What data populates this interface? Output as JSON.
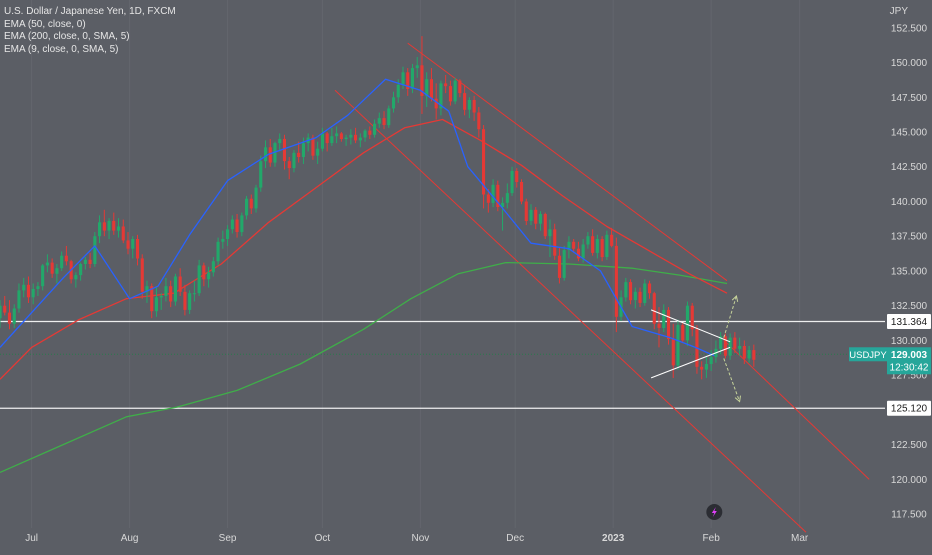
{
  "chart_data": {
    "type": "candlestick",
    "title": "U.S. Dollar / Japanese Yen, 1D, FXCM",
    "indicators": [
      "EMA (50, close, 0)",
      "EMA (200, close, 0, SMA, 5)",
      "EMA (9, close, 0, SMA, 5)"
    ],
    "y_unit": "JPY",
    "symbol": "USDJPY",
    "last_price": "129.003",
    "countdown": "12:30:42",
    "y_ticks": [
      "152.500",
      "150.000",
      "147.500",
      "145.000",
      "142.500",
      "140.000",
      "137.500",
      "135.000",
      "132.500",
      "130.000",
      "127.500",
      "125.000",
      "122.500",
      "120.000",
      "117.500"
    ],
    "x_labels": [
      "Jul",
      "Aug",
      "Sep",
      "Oct",
      "Nov",
      "Dec",
      "2023",
      "Feb",
      "Mar"
    ],
    "x_label_days": [
      10,
      41,
      72,
      102,
      133,
      163,
      194,
      225,
      253
    ],
    "ylim": [
      116.5,
      154.5
    ],
    "xlim": [
      0,
      280
    ],
    "horizontal_levels": [
      {
        "label": "131.364",
        "price": 131.364,
        "color": "#ffffff"
      },
      {
        "label": "125.120",
        "price": 125.12,
        "color": "#ffffff"
      }
    ],
    "current_price_line": {
      "price": 129.003,
      "color": "#2a7a4c"
    },
    "colors": {
      "up": "#22a86a",
      "down": "#e53935",
      "ema9": "#2962ff",
      "ema50": "#e53935",
      "ema200": "#3fae49",
      "channel": "#e53935",
      "triangle": "#ffffff",
      "arrow": "#c6d39a",
      "price_tag": "#26a69a"
    },
    "ohlc": [
      [
        131.6,
        132.9,
        130.9,
        132.5
      ],
      [
        132.5,
        133.2,
        131.8,
        132.0
      ],
      [
        132.0,
        132.9,
        130.8,
        131.2
      ],
      [
        131.2,
        132.6,
        130.9,
        132.3
      ],
      [
        132.3,
        134.1,
        132.0,
        133.6
      ],
      [
        133.6,
        134.5,
        133.1,
        134.0
      ],
      [
        134.0,
        134.6,
        132.7,
        133.1
      ],
      [
        133.1,
        134.1,
        132.6,
        133.7
      ],
      [
        133.7,
        134.2,
        133.2,
        133.9
      ],
      [
        133.9,
        135.5,
        133.6,
        135.4
      ],
      [
        135.4,
        136.2,
        134.9,
        135.6
      ],
      [
        135.6,
        135.9,
        134.5,
        134.8
      ],
      [
        134.8,
        135.5,
        134.1,
        135.2
      ],
      [
        135.2,
        136.4,
        135.0,
        136.1
      ],
      [
        136.1,
        136.8,
        135.4,
        135.7
      ],
      [
        135.7,
        135.8,
        134.1,
        134.4
      ],
      [
        134.4,
        134.9,
        133.8,
        134.7
      ],
      [
        134.7,
        135.6,
        134.3,
        135.5
      ],
      [
        135.5,
        136.0,
        135.1,
        135.8
      ],
      [
        135.8,
        136.3,
        135.2,
        135.5
      ],
      [
        135.5,
        137.8,
        135.3,
        137.5
      ],
      [
        137.5,
        139.0,
        137.0,
        138.5
      ],
      [
        138.5,
        139.4,
        137.5,
        137.9
      ],
      [
        137.9,
        138.8,
        137.3,
        138.6
      ],
      [
        138.6,
        139.2,
        137.6,
        137.9
      ],
      [
        137.9,
        138.8,
        137.4,
        138.2
      ],
      [
        138.2,
        138.7,
        137.0,
        137.2
      ],
      [
        137.2,
        137.8,
        136.2,
        136.6
      ],
      [
        136.6,
        137.5,
        135.9,
        137.3
      ],
      [
        137.3,
        137.6,
        135.4,
        135.9
      ],
      [
        135.9,
        136.2,
        133.0,
        133.5
      ],
      [
        133.5,
        134.3,
        132.7,
        133.9
      ],
      [
        133.9,
        134.1,
        131.6,
        132.1
      ],
      [
        132.1,
        133.8,
        131.7,
        133.1
      ],
      [
        133.1,
        133.4,
        132.2,
        133.2
      ],
      [
        133.2,
        134.5,
        132.8,
        133.9
      ],
      [
        133.9,
        134.3,
        132.4,
        132.8
      ],
      [
        132.8,
        134.8,
        132.5,
        134.6
      ],
      [
        134.6,
        135.2,
        133.2,
        133.5
      ],
      [
        133.5,
        134.0,
        131.8,
        132.2
      ],
      [
        132.2,
        133.6,
        131.9,
        133.4
      ],
      [
        133.4,
        134.3,
        132.8,
        133.4
      ],
      [
        133.4,
        135.8,
        133.2,
        135.4
      ],
      [
        135.4,
        135.6,
        133.9,
        134.4
      ],
      [
        134.4,
        135.3,
        133.8,
        134.9
      ],
      [
        134.9,
        136.0,
        134.6,
        135.7
      ],
      [
        135.7,
        137.4,
        135.4,
        137.1
      ],
      [
        137.1,
        137.9,
        136.6,
        137.3
      ],
      [
        137.3,
        138.3,
        136.8,
        138.0
      ],
      [
        138.0,
        139.0,
        137.7,
        138.7
      ],
      [
        138.7,
        139.1,
        137.4,
        137.8
      ],
      [
        137.8,
        139.2,
        137.5,
        139.0
      ],
      [
        139.0,
        140.4,
        138.7,
        140.2
      ],
      [
        140.2,
        140.5,
        139.1,
        139.5
      ],
      [
        139.5,
        141.2,
        139.2,
        141.0
      ],
      [
        141.0,
        143.3,
        140.7,
        142.9
      ],
      [
        142.9,
        144.4,
        142.4,
        143.9
      ],
      [
        143.9,
        144.5,
        142.5,
        142.8
      ],
      [
        142.8,
        144.3,
        142.5,
        144.2
      ],
      [
        144.2,
        144.9,
        143.6,
        144.5
      ],
      [
        144.5,
        144.8,
        142.3,
        142.9
      ],
      [
        142.9,
        143.2,
        141.6,
        142.4
      ],
      [
        142.4,
        143.7,
        142.1,
        143.5
      ],
      [
        143.5,
        144.3,
        142.8,
        143.2
      ],
      [
        143.2,
        144.6,
        142.7,
        144.2
      ],
      [
        144.2,
        144.9,
        143.6,
        144.6
      ],
      [
        144.6,
        144.8,
        143.0,
        143.3
      ],
      [
        143.3,
        144.3,
        142.7,
        143.8
      ],
      [
        143.8,
        145.3,
        143.6,
        144.9
      ],
      [
        144.9,
        145.0,
        143.6,
        144.2
      ],
      [
        144.2,
        145.3,
        144.0,
        144.7
      ],
      [
        144.7,
        145.4,
        144.2,
        144.9
      ],
      [
        144.9,
        145.0,
        144.3,
        144.5
      ],
      [
        144.5,
        144.8,
        144.0,
        144.6
      ],
      [
        144.6,
        145.2,
        144.1,
        144.8
      ],
      [
        144.8,
        145.3,
        144.2,
        144.4
      ],
      [
        144.4,
        144.9,
        143.9,
        144.6
      ],
      [
        144.6,
        145.2,
        144.3,
        145.1
      ],
      [
        145.1,
        145.4,
        144.5,
        144.8
      ],
      [
        144.8,
        145.9,
        144.6,
        145.6
      ],
      [
        145.6,
        146.4,
        145.3,
        146.0
      ],
      [
        146.0,
        146.5,
        145.2,
        145.5
      ],
      [
        145.5,
        146.9,
        145.3,
        146.7
      ],
      [
        146.7,
        147.9,
        146.4,
        147.5
      ],
      [
        147.5,
        148.8,
        147.1,
        148.4
      ],
      [
        148.4,
        149.7,
        148.1,
        149.3
      ],
      [
        149.3,
        149.6,
        147.6,
        148.1
      ],
      [
        148.1,
        149.9,
        147.8,
        149.6
      ],
      [
        149.6,
        150.4,
        148.9,
        149.8
      ],
      [
        149.8,
        151.9,
        146.3,
        147.6
      ],
      [
        147.6,
        149.3,
        146.8,
        148.8
      ],
      [
        148.8,
        149.6,
        147.2,
        147.4
      ],
      [
        147.4,
        148.5,
        145.9,
        146.7
      ],
      [
        146.7,
        148.7,
        146.2,
        148.5
      ],
      [
        148.5,
        149.1,
        147.8,
        148.3
      ],
      [
        148.3,
        148.7,
        146.9,
        147.2
      ],
      [
        147.2,
        148.9,
        147.0,
        148.7
      ],
      [
        148.7,
        148.8,
        147.5,
        147.8
      ],
      [
        147.8,
        148.4,
        146.2,
        146.6
      ],
      [
        146.6,
        147.5,
        146.0,
        147.3
      ],
      [
        147.3,
        147.6,
        145.8,
        146.4
      ],
      [
        146.4,
        146.8,
        144.6,
        145.2
      ],
      [
        145.2,
        145.5,
        139.5,
        140.5
      ],
      [
        140.5,
        140.9,
        139.2,
        139.9
      ],
      [
        139.9,
        141.6,
        139.6,
        141.2
      ],
      [
        141.2,
        141.5,
        139.3,
        139.6
      ],
      [
        139.6,
        140.3,
        137.9,
        139.9
      ],
      [
        139.9,
        141.3,
        139.5,
        140.6
      ],
      [
        140.6,
        142.5,
        140.4,
        142.2
      ],
      [
        142.2,
        142.4,
        141.0,
        141.4
      ],
      [
        141.4,
        141.6,
        139.8,
        140.0
      ],
      [
        140.0,
        140.2,
        138.3,
        138.6
      ],
      [
        138.6,
        139.8,
        138.3,
        139.4
      ],
      [
        139.4,
        139.6,
        138.0,
        138.4
      ],
      [
        138.4,
        139.3,
        137.9,
        139.1
      ],
      [
        139.1,
        139.2,
        137.3,
        137.5
      ],
      [
        137.5,
        138.7,
        136.0,
        138.0
      ],
      [
        138.0,
        138.4,
        135.8,
        136.1
      ],
      [
        136.1,
        136.7,
        134.1,
        134.5
      ],
      [
        134.5,
        136.8,
        134.3,
        136.5
      ],
      [
        136.5,
        137.5,
        135.9,
        137.1
      ],
      [
        137.1,
        137.3,
        136.3,
        136.6
      ],
      [
        136.6,
        137.1,
        135.7,
        135.9
      ],
      [
        135.9,
        137.3,
        135.6,
        136.9
      ],
      [
        136.9,
        137.8,
        136.6,
        137.5
      ],
      [
        137.5,
        138.0,
        136.1,
        136.3
      ],
      [
        136.3,
        137.6,
        135.9,
        137.3
      ],
      [
        137.3,
        137.5,
        135.7,
        136.0
      ],
      [
        136.0,
        137.9,
        135.8,
        137.6
      ],
      [
        137.6,
        138.1,
        136.7,
        136.8
      ],
      [
        136.8,
        137.4,
        130.6,
        131.7
      ],
      [
        131.7,
        133.6,
        131.4,
        133.1
      ],
      [
        133.1,
        134.5,
        132.8,
        134.2
      ],
      [
        134.2,
        134.4,
        132.6,
        132.9
      ],
      [
        132.9,
        133.8,
        132.3,
        133.5
      ],
      [
        133.5,
        133.8,
        132.4,
        132.7
      ],
      [
        132.7,
        134.4,
        132.5,
        134.1
      ],
      [
        134.1,
        134.3,
        133.0,
        133.4
      ],
      [
        133.4,
        133.5,
        130.8,
        131.2
      ],
      [
        131.2,
        132.4,
        129.5,
        130.9
      ],
      [
        130.9,
        132.6,
        130.6,
        132.2
      ],
      [
        132.2,
        132.4,
        129.7,
        130.1
      ],
      [
        130.1,
        131.2,
        127.3,
        128.2
      ],
      [
        128.2,
        131.5,
        127.9,
        131.1
      ],
      [
        131.1,
        131.3,
        129.8,
        130.0
      ],
      [
        130.0,
        132.8,
        129.6,
        132.5
      ],
      [
        132.5,
        132.7,
        130.3,
        130.8
      ],
      [
        130.8,
        131.1,
        127.6,
        128.1
      ],
      [
        128.1,
        128.5,
        127.2,
        127.9
      ],
      [
        127.9,
        128.8,
        127.3,
        128.3
      ],
      [
        128.3,
        129.3,
        127.8,
        128.8
      ],
      [
        128.8,
        130.0,
        128.4,
        129.4
      ],
      [
        129.4,
        130.6,
        129.0,
        130.3
      ],
      [
        130.3,
        130.5,
        128.7,
        128.9
      ],
      [
        128.9,
        130.5,
        128.6,
        130.2
      ],
      [
        130.2,
        130.6,
        129.1,
        129.4
      ],
      [
        129.4,
        130.2,
        128.9,
        129.6
      ],
      [
        129.6,
        130.0,
        128.3,
        128.7
      ],
      [
        128.7,
        129.6,
        128.4,
        129.3
      ],
      [
        129.3,
        129.7,
        128.1,
        128.6
      ]
    ],
    "first_candle_day": 0,
    "candle_spacing_days": 1.5,
    "ema9": [
      [
        0,
        129.5
      ],
      [
        20,
        134.5
      ],
      [
        30,
        136.8
      ],
      [
        41,
        133.0
      ],
      [
        50,
        133.9
      ],
      [
        60,
        137.6
      ],
      [
        72,
        141.5
      ],
      [
        85,
        143.4
      ],
      [
        100,
        144.6
      ],
      [
        110,
        146.2
      ],
      [
        122,
        148.8
      ],
      [
        133,
        148.0
      ],
      [
        142,
        146.5
      ],
      [
        148,
        142.5
      ],
      [
        158,
        139.8
      ],
      [
        168,
        137.0
      ],
      [
        180,
        136.6
      ],
      [
        190,
        135.0
      ],
      [
        200,
        131.0
      ],
      [
        212,
        130.2
      ],
      [
        220,
        129.5
      ],
      [
        226,
        128.9
      ]
    ],
    "ema50": [
      [
        0,
        127.2
      ],
      [
        10,
        129.5
      ],
      [
        25,
        131.5
      ],
      [
        40,
        133.0
      ],
      [
        55,
        133.4
      ],
      [
        70,
        135.5
      ],
      [
        85,
        138.5
      ],
      [
        100,
        141.0
      ],
      [
        115,
        143.5
      ],
      [
        128,
        145.3
      ],
      [
        140,
        145.9
      ],
      [
        152,
        144.4
      ],
      [
        165,
        142.6
      ],
      [
        178,
        140.4
      ],
      [
        192,
        138.2
      ],
      [
        205,
        136.5
      ],
      [
        218,
        134.8
      ],
      [
        230,
        133.4
      ]
    ],
    "ema200": [
      [
        0,
        120.5
      ],
      [
        20,
        122.5
      ],
      [
        40,
        124.5
      ],
      [
        56,
        125.2
      ],
      [
        75,
        126.4
      ],
      [
        95,
        128.3
      ],
      [
        115,
        130.8
      ],
      [
        130,
        133.0
      ],
      [
        145,
        134.8
      ],
      [
        160,
        135.6
      ],
      [
        180,
        135.5
      ],
      [
        200,
        135.2
      ],
      [
        215,
        134.7
      ],
      [
        230,
        134.1
      ]
    ],
    "channel_upper": [
      [
        129,
        151.4
      ],
      [
        230,
        134.3
      ]
    ],
    "channel_lower": [
      [
        106,
        148.0
      ],
      [
        255,
        116.2
      ]
    ],
    "channel_mid": [
      [
        230,
        129.8
      ],
      [
        275,
        120.0
      ]
    ],
    "triangle_upper": [
      [
        206,
        132.2
      ],
      [
        231,
        129.9
      ]
    ],
    "triangle_lower": [
      [
        206,
        127.3
      ],
      [
        231,
        129.5
      ]
    ],
    "arrow_up": [
      [
        229,
        130.2
      ],
      [
        233,
        133.2
      ]
    ],
    "arrow_down": [
      [
        229,
        128.7
      ],
      [
        234,
        125.6
      ]
    ],
    "lightning_icon_day": 226
  }
}
